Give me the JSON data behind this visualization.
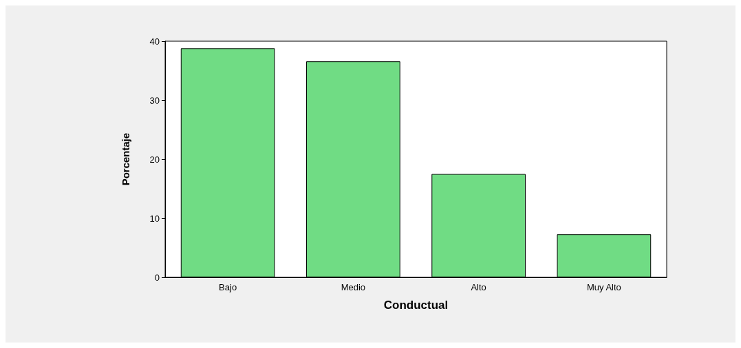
{
  "chart_data": {
    "type": "bar",
    "xlabel": "Conductual",
    "ylabel": "Porcentaje",
    "categories": [
      "Bajo",
      "Medio",
      "Alto",
      "Muy Alto"
    ],
    "values": [
      38.8,
      36.6,
      17.5,
      7.3
    ],
    "color": "#70dc84",
    "ylim": [
      0,
      40
    ],
    "yticks": [
      0,
      10,
      20,
      30,
      40
    ],
    "grid": false
  }
}
